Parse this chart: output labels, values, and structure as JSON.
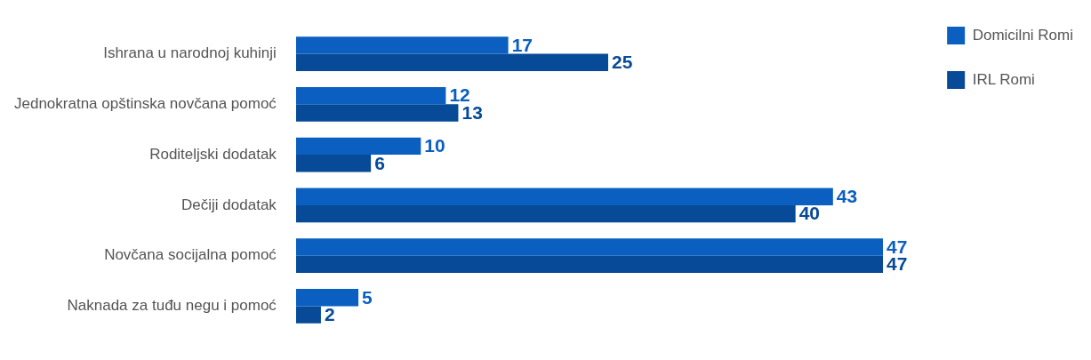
{
  "chart_data": {
    "type": "bar",
    "orientation": "horizontal",
    "data_labels": true,
    "legend": "top right",
    "grid": false,
    "tick_labels": "y",
    "categories": [
      "Ishrana u narodnoj kuhinji",
      "Jednokratna opštinska novčana pomoć",
      "Roditeljski dodatak",
      "Dečiji dodatak",
      "Novčana socijalna pomoć",
      "Naknada za tuđu negu i pomoć"
    ],
    "series": [
      {
        "name": "Domicilni Romi",
        "color": "#0a5fc0",
        "values": [
          17,
          12,
          10,
          43,
          47,
          5
        ]
      },
      {
        "name": "IRL Romi",
        "color": "#064a98",
        "values": [
          25,
          13,
          6,
          40,
          47,
          2
        ]
      }
    ]
  }
}
